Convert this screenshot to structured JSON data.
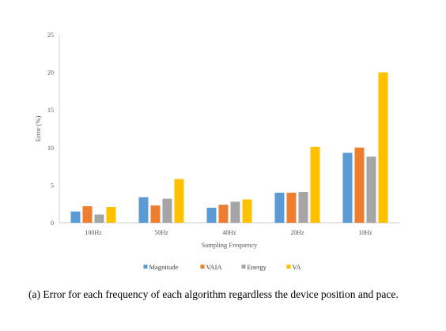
{
  "chart_data": {
    "type": "bar",
    "categories": [
      "100Hz",
      "50Hz",
      "40Hz",
      "20Hz",
      "10Hz"
    ],
    "series": [
      {
        "name": "Magnitude",
        "color": "#5B9BD5",
        "values": [
          1.5,
          3.4,
          2.0,
          4.0,
          9.3
        ]
      },
      {
        "name": "VAIA",
        "color": "#ED7D31",
        "values": [
          2.2,
          2.3,
          2.4,
          4.0,
          10.0
        ]
      },
      {
        "name": "Energy",
        "color": "#A5A5A5",
        "values": [
          1.1,
          3.2,
          2.8,
          4.1,
          8.8
        ]
      },
      {
        "name": "VA",
        "color": "#FFC000",
        "values": [
          2.1,
          5.8,
          3.1,
          10.1,
          20.0
        ]
      }
    ],
    "xlabel": "Sampling Frequency",
    "ylabel": "Error (%)",
    "ylim": [
      0,
      25
    ],
    "yticks": [
      0,
      5,
      10,
      15,
      20,
      25
    ],
    "grid": false,
    "legend_position": "bottom"
  },
  "caption": "(a) Error for each frequency of each algorithm regardless the device position and pace."
}
